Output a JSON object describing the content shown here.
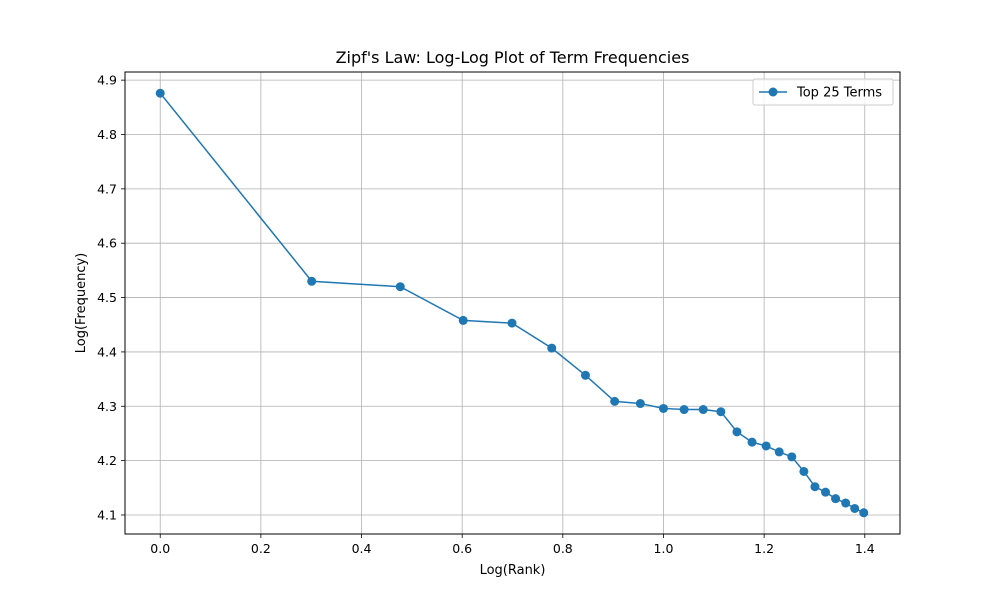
{
  "chart_data": {
    "type": "line",
    "title": "Zipf's Law: Log-Log Plot of Term Frequencies",
    "xlabel": "Log(Rank)",
    "ylabel": "Log(Frequency)",
    "xlim": [
      -0.07,
      1.47
    ],
    "ylim": [
      4.065,
      4.915
    ],
    "xticks": [
      "0.0",
      "0.2",
      "0.4",
      "0.6",
      "0.8",
      "1.0",
      "1.2",
      "1.4"
    ],
    "yticks": [
      "4.1",
      "4.2",
      "4.3",
      "4.4",
      "4.5",
      "4.6",
      "4.7",
      "4.8",
      "4.9"
    ],
    "grid": true,
    "legend_position": "top-right",
    "series": [
      {
        "name": "Top 25 Terms",
        "color": "#1f77b4",
        "marker": "circle",
        "x": [
          0.0,
          0.301,
          0.477,
          0.602,
          0.699,
          0.778,
          0.845,
          0.903,
          0.954,
          1.0,
          1.041,
          1.079,
          1.114,
          1.146,
          1.176,
          1.204,
          1.23,
          1.255,
          1.279,
          1.301,
          1.322,
          1.342,
          1.362,
          1.38,
          1.398
        ],
        "y": [
          4.876,
          4.53,
          4.52,
          4.458,
          4.453,
          4.407,
          4.357,
          4.309,
          4.305,
          4.296,
          4.294,
          4.294,
          4.29,
          4.253,
          4.234,
          4.227,
          4.216,
          4.207,
          4.18,
          4.152,
          4.142,
          4.13,
          4.122,
          4.112,
          4.104
        ]
      }
    ]
  }
}
